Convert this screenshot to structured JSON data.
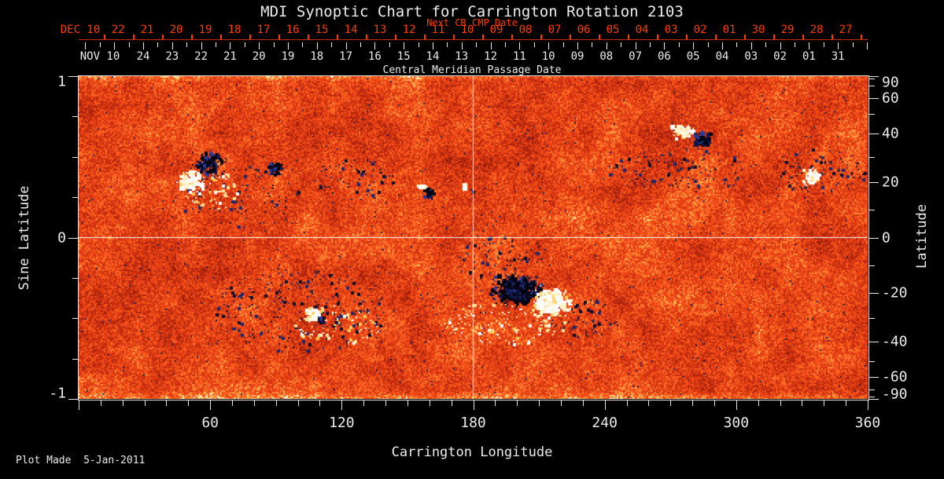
{
  "title": "MDI Synoptic Chart for Carrington Rotation 2103",
  "footer": {
    "plot_made": "Plot Made  5-Jan-2011"
  },
  "colors": {
    "background": "#000000",
    "white_text": "#ececec",
    "red_text": "#ff3c00",
    "red_line": "#c82800",
    "frame": "#e4e4e4",
    "grid_line": "#ffffff",
    "map_base": "#e84414",
    "map_dark_pole": "#101030",
    "map_bright": "#ffd464"
  },
  "chart_data": {
    "type": "heatmap",
    "title": "MDI Synoptic Chart for Carrington Rotation 2103",
    "xlabel": "Carrington Longitude",
    "ylabel_left": "Sine Latitude",
    "ylabel_right": "Latitude",
    "xlim": [
      0,
      360
    ],
    "ylim_sine": [
      -1,
      1
    ],
    "x_tick_lons": [
      60,
      120,
      180,
      240,
      300,
      360
    ],
    "x_minor_step_deg": 10,
    "left_tick_labels": [
      "1",
      "0",
      "-1"
    ],
    "left_tick_sines": [
      1,
      0,
      -1
    ],
    "right_tick_lats_labeled": [
      90,
      60,
      40,
      20,
      0,
      -20,
      -40,
      -60,
      -90
    ],
    "right_tick_lats_minor": [
      80,
      70,
      50,
      30,
      10,
      -10,
      -30,
      -50,
      -70,
      -80
    ],
    "grid_lines": {
      "meridian_lon": 180,
      "equator_sine": 0
    },
    "top_axis_red": {
      "label": "Next CR CMP Date",
      "month_label": "DEC 10",
      "day_labels": [
        "22",
        "21",
        "20",
        "19",
        "18",
        "17",
        "16",
        "15",
        "14",
        "13",
        "12",
        "11",
        "10",
        "09",
        "08",
        "07",
        "06",
        "05",
        "04",
        "03",
        "02",
        "01",
        "30",
        "29",
        "28",
        "27"
      ]
    },
    "top_axis_white": {
      "label": "Central Meridian Passage Date",
      "month_label": "NOV 10",
      "day_labels": [
        "24",
        "23",
        "22",
        "21",
        "20",
        "19",
        "18",
        "17",
        "16",
        "15",
        "14",
        "13",
        "12",
        "11",
        "10",
        "09",
        "08",
        "07",
        "06",
        "05",
        "04",
        "03",
        "02",
        "01",
        "31"
      ]
    },
    "active_regions": [
      {
        "lon": 60,
        "lat": 27,
        "polarity": "negative",
        "lon_r": 8,
        "lat_r": 5,
        "strength": 1.0
      },
      {
        "lon": 51,
        "lat": 20,
        "polarity": "positive",
        "lon_r": 7,
        "lat_r": 5,
        "strength": 1.0
      },
      {
        "lon": 90,
        "lat": 25,
        "polarity": "negative",
        "lon_r": 4.5,
        "lat_r": 3.5,
        "strength": 0.8
      },
      {
        "lon": 157,
        "lat": 18,
        "polarity": "positive",
        "lon_r": 2.5,
        "lat_r": 2,
        "strength": 0.7
      },
      {
        "lon": 160,
        "lat": 15.5,
        "polarity": "negative",
        "lon_r": 3.5,
        "lat_r": 2.5,
        "strength": 0.8
      },
      {
        "lon": 176.5,
        "lat": 18,
        "polarity": "positive",
        "lon_r": 2,
        "lat_r": 1.5,
        "strength": 0.7
      },
      {
        "lon": 180,
        "lat": 16.5,
        "polarity": "negative",
        "lon_r": 2,
        "lat_r": 1.5,
        "strength": 0.7
      },
      {
        "lon": 201,
        "lat": -19.5,
        "polarity": "negative",
        "lon_r": 14,
        "lat_r": 7,
        "strength": 1.0
      },
      {
        "lon": 216,
        "lat": -24,
        "polarity": "positive",
        "lon_r": 11,
        "lat_r": 6.5,
        "strength": 1.0
      },
      {
        "lon": 276,
        "lat": 41,
        "polarity": "positive",
        "lon_r": 6,
        "lat_r": 4,
        "strength": 1.0
      },
      {
        "lon": 285,
        "lat": 37,
        "polarity": "negative",
        "lon_r": 5.5,
        "lat_r": 4,
        "strength": 1.0
      },
      {
        "lon": 335,
        "lat": 22,
        "polarity": "positive",
        "lon_r": 5,
        "lat_r": 4,
        "strength": 0.7
      },
      {
        "lon": 107,
        "lat": -29,
        "polarity": "positive",
        "lon_r": 4.5,
        "lat_r": 4,
        "strength": 1.0
      },
      {
        "lon": 111.5,
        "lat": -31,
        "polarity": "negative",
        "lon_r": 2,
        "lat_r": 1.5,
        "strength": 0.8
      }
    ],
    "speckle_fields": [
      {
        "lon": 100,
        "lat": -27,
        "lon_r": 40,
        "lat_r": 17,
        "polarity": "negative",
        "count": 220
      },
      {
        "lon": 194,
        "lat": -8,
        "lon_r": 22,
        "lat_r": 9,
        "polarity": "negative",
        "count": 90
      },
      {
        "lon": 231,
        "lat": -30,
        "lon_r": 16,
        "lat_r": 8,
        "polarity": "negative",
        "count": 60
      },
      {
        "lon": 273,
        "lat": 25,
        "lon_r": 32,
        "lat_r": 9,
        "polarity": "negative",
        "count": 110
      },
      {
        "lon": 339,
        "lat": 24,
        "lon_r": 20,
        "lat_r": 9,
        "polarity": "negative",
        "count": 80
      },
      {
        "lon": 72,
        "lat": 15,
        "lon_r": 29,
        "lat_r": 12,
        "polarity": "negative",
        "count": 80
      },
      {
        "lon": 126,
        "lat": 21,
        "lon_r": 21,
        "lat_r": 8,
        "polarity": "negative",
        "count": 60
      },
      {
        "lon": 194,
        "lat": -32,
        "lon_r": 29,
        "lat_r": 9,
        "polarity": "positive",
        "count": 140
      },
      {
        "lon": 118,
        "lat": -33,
        "lon_r": 21,
        "lat_r": 8,
        "polarity": "positive",
        "count": 90
      },
      {
        "lon": 60,
        "lat": 17,
        "lon_r": 12,
        "lat_r": 8,
        "polarity": "positive",
        "count": 90
      }
    ]
  }
}
